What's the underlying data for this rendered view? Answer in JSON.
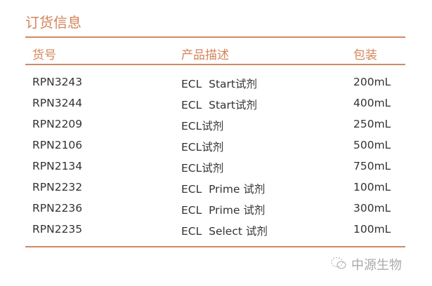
{
  "title": "订货信息",
  "headers": [
    "货号",
    "产品描述",
    "包装"
  ],
  "rows": [
    [
      "RPN3243",
      "ECL  Start试剂",
      "200mL"
    ],
    [
      "RPN3244",
      "ECL  Start试剂",
      "400mL"
    ],
    [
      "RPN2209",
      "ECL试剂",
      "250mL"
    ],
    [
      "RPN2106",
      "ECL试剂",
      "500mL"
    ],
    [
      "RPN2134",
      "ECL试剂",
      "750mL"
    ],
    [
      "RPN2232",
      "ECL  Prime 试剂",
      "100mL"
    ],
    [
      "RPN2236",
      "ECL  Prime 试剂",
      "300mL"
    ],
    [
      "RPN2235",
      "ECL  Select 试剂",
      "100mL"
    ]
  ],
  "watermark": {
    "icon": "wechat-icon",
    "text": "中源生物"
  },
  "colors": {
    "accent": "#d4845a"
  }
}
